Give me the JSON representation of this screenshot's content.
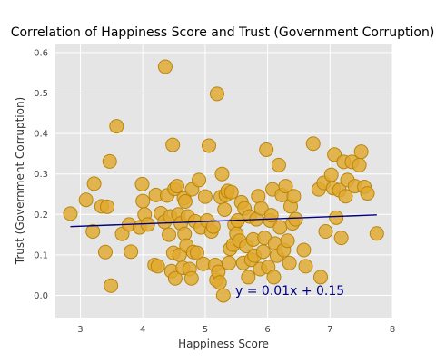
{
  "chart_data": {
    "type": "scatter",
    "title": "Correlation of Happiness Score and Trust (Government Corruption)",
    "xlabel": "Happiness Score",
    "ylabel": "Trust (Government Corruption)",
    "xlim": [
      2.6,
      8.0
    ],
    "ylim": [
      -0.055,
      0.62
    ],
    "xticks": [
      "3",
      "4",
      "5",
      "6",
      "7",
      "8"
    ],
    "yticks": [
      "0.0",
      "0.1",
      "0.2",
      "0.3",
      "0.4",
      "0.5",
      "0.6"
    ],
    "grid": true,
    "point_color": "#e0a82e",
    "point_edge": "#b8860b",
    "background": "#e5e5e5",
    "regression": {
      "label": "y = 0.01x + 0.15",
      "slope": 0.00585,
      "intercept": 0.1534,
      "x_range": [
        2.84,
        7.75
      ],
      "color": "#000080"
    },
    "points": [
      [
        2.84,
        0.202
      ],
      [
        3.09,
        0.236
      ],
      [
        3.2,
        0.158
      ],
      [
        3.22,
        0.276
      ],
      [
        3.34,
        0.22
      ],
      [
        3.4,
        0.107
      ],
      [
        3.43,
        0.219
      ],
      [
        3.47,
        0.331
      ],
      [
        3.49,
        0.024
      ],
      [
        3.58,
        0.418
      ],
      [
        3.67,
        0.152
      ],
      [
        3.78,
        0.175
      ],
      [
        3.81,
        0.108
      ],
      [
        3.95,
        0.168
      ],
      [
        3.99,
        0.275
      ],
      [
        4.0,
        0.233
      ],
      [
        4.03,
        0.2
      ],
      [
        4.08,
        0.175
      ],
      [
        4.19,
        0.075
      ],
      [
        4.21,
        0.248
      ],
      [
        4.24,
        0.072
      ],
      [
        4.29,
        0.203
      ],
      [
        4.35,
        0.182
      ],
      [
        4.36,
        0.565
      ],
      [
        4.39,
        0.247
      ],
      [
        4.42,
        0.15
      ],
      [
        4.44,
        0.195
      ],
      [
        4.46,
        0.06
      ],
      [
        4.48,
        0.372
      ],
      [
        4.49,
        0.105
      ],
      [
        4.51,
        0.263
      ],
      [
        4.52,
        0.042
      ],
      [
        4.55,
        0.27
      ],
      [
        4.57,
        0.2
      ],
      [
        4.59,
        0.1
      ],
      [
        4.61,
        0.178
      ],
      [
        4.64,
        0.068
      ],
      [
        4.66,
        0.24
      ],
      [
        4.67,
        0.152
      ],
      [
        4.68,
        0.232
      ],
      [
        4.7,
        0.123
      ],
      [
        4.72,
        0.195
      ],
      [
        4.75,
        0.065
      ],
      [
        4.78,
        0.042
      ],
      [
        4.79,
        0.262
      ],
      [
        4.81,
        0.107
      ],
      [
        4.84,
        0.183
      ],
      [
        4.87,
        0.105
      ],
      [
        4.9,
        0.285
      ],
      [
        4.93,
        0.168
      ],
      [
        4.97,
        0.078
      ],
      [
        5.0,
        0.244
      ],
      [
        5.03,
        0.185
      ],
      [
        5.06,
        0.37
      ],
      [
        5.1,
        0.158
      ],
      [
        5.13,
        0.17
      ],
      [
        5.16,
        0.075
      ],
      [
        5.18,
        0.038
      ],
      [
        5.19,
        0.498
      ],
      [
        5.21,
        0.058
      ],
      [
        5.23,
        0.032
      ],
      [
        5.25,
        0.243
      ],
      [
        5.27,
        0.3
      ],
      [
        5.29,
        0.0
      ],
      [
        5.31,
        0.212
      ],
      [
        5.33,
        0.248
      ],
      [
        5.36,
        0.258
      ],
      [
        5.38,
        0.08
      ],
      [
        5.4,
        0.115
      ],
      [
        5.42,
        0.255
      ],
      [
        5.45,
        0.125
      ],
      [
        5.47,
        0.175
      ],
      [
        5.5,
        0.152
      ],
      [
        5.52,
        0.185
      ],
      [
        5.55,
        0.135
      ],
      [
        5.58,
        0.23
      ],
      [
        5.61,
        0.08
      ],
      [
        5.63,
        0.215
      ],
      [
        5.66,
        0.122
      ],
      [
        5.69,
        0.045
      ],
      [
        5.71,
        0.195
      ],
      [
        5.74,
        0.088
      ],
      [
        5.77,
        0.138
      ],
      [
        5.79,
        0.098
      ],
      [
        5.82,
        0.188
      ],
      [
        5.85,
        0.245
      ],
      [
        5.88,
        0.065
      ],
      [
        5.9,
        0.215
      ],
      [
        5.93,
        0.108
      ],
      [
        5.95,
        0.142
      ],
      [
        5.98,
        0.36
      ],
      [
        6.01,
        0.07
      ],
      [
        6.04,
        0.185
      ],
      [
        6.06,
        0.198
      ],
      [
        6.08,
        0.262
      ],
      [
        6.1,
        0.045
      ],
      [
        6.12,
        0.128
      ],
      [
        6.15,
        0.098
      ],
      [
        6.18,
        0.322
      ],
      [
        6.2,
        0.168
      ],
      [
        6.23,
        0.248
      ],
      [
        6.26,
        0.112
      ],
      [
        6.29,
        0.27
      ],
      [
        6.32,
        0.135
      ],
      [
        6.35,
        0.08
      ],
      [
        6.37,
        0.22
      ],
      [
        6.4,
        0.178
      ],
      [
        6.42,
        0.245
      ],
      [
        6.45,
        0.188
      ],
      [
        6.58,
        0.112
      ],
      [
        6.61,
        0.072
      ],
      [
        6.73,
        0.375
      ],
      [
        6.82,
        0.262
      ],
      [
        6.85,
        0.045
      ],
      [
        6.9,
        0.278
      ],
      [
        6.93,
        0.158
      ],
      [
        7.02,
        0.298
      ],
      [
        7.05,
        0.265
      ],
      [
        7.07,
        0.348
      ],
      [
        7.1,
        0.192
      ],
      [
        7.15,
        0.26
      ],
      [
        7.18,
        0.142
      ],
      [
        7.22,
        0.33
      ],
      [
        7.25,
        0.245
      ],
      [
        7.28,
        0.285
      ],
      [
        7.35,
        0.33
      ],
      [
        7.4,
        0.27
      ],
      [
        7.47,
        0.322
      ],
      [
        7.5,
        0.355
      ],
      [
        7.55,
        0.268
      ],
      [
        7.6,
        0.252
      ],
      [
        7.75,
        0.153
      ]
    ]
  }
}
